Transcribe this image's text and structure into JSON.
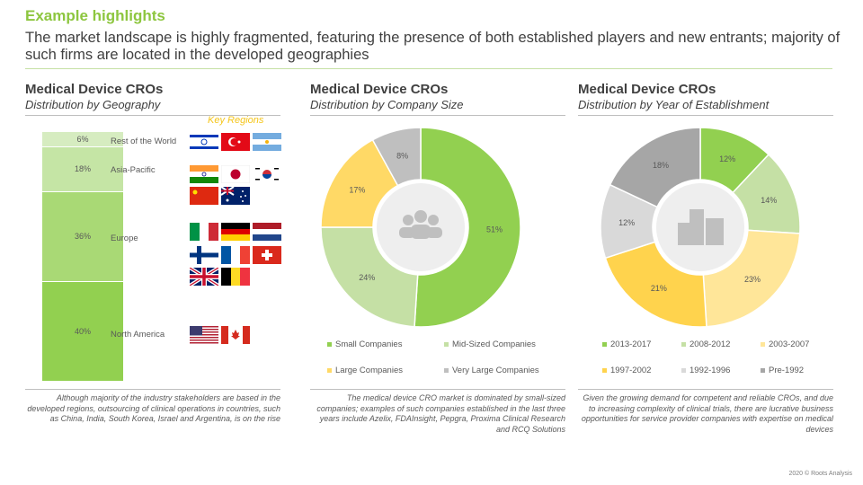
{
  "header": {
    "title": "Example highlights",
    "subtitle": "The market landscape is highly fragmented, featuring the presence of both established players and new entrants; majority of such firms are located in the developed geographies"
  },
  "panels": [
    {
      "heading": "Medical Device CROs",
      "subheading": "Distribution by Geography",
      "note": "Although majority of the industry stakeholders are based in the developed regions, outsourcing of clinical operations in countries, such as China, India, South Korea, Israel and Argentina, is on the rise",
      "key_regions_label": "Key Regions"
    },
    {
      "heading": "Medical Device CROs",
      "subheading": "Distribution by Company Size",
      "note": "The medical device CRO market is dominated by small-sized companies; examples of such companies established in the last three years include Azelix, FDAInsight, Pepgra, Proxima Clinical Research and RCQ Solutions",
      "center_icon": "people-icon"
    },
    {
      "heading": "Medical Device CROs",
      "subheading": "Distribution by Year of Establishment",
      "note": "Given the growing demand for competent and reliable CROs, and due to increasing complexity of clinical trials, there are lucrative business opportunities for service provider companies with expertise on medical devices",
      "center_icon": "buildings-icon"
    }
  ],
  "chart_data": [
    {
      "type": "bar",
      "stacked": true,
      "categories": [
        "North America",
        "Europe",
        "Asia-Pacific",
        "Rest of the World"
      ],
      "values": [
        40,
        36,
        18,
        6
      ],
      "labels": [
        "40%",
        "36%",
        "18%",
        "6%"
      ],
      "colors": [
        "#92d050",
        "#a9d975",
        "#c5e5a5",
        "#d6ecc0"
      ],
      "flags": {
        "Rest of the World": [
          "Israel",
          "Turkey",
          "Argentina"
        ],
        "Asia-Pacific": [
          "India",
          "Japan",
          "South Korea",
          "China",
          "Australia"
        ],
        "Europe": [
          "Italy",
          "Germany",
          "Netherlands",
          "Finland",
          "France",
          "Switzerland",
          "United Kingdom",
          "Belgium"
        ],
        "North America": [
          "United States",
          "Canada"
        ]
      }
    },
    {
      "type": "pie",
      "donut": true,
      "categories": [
        "Small Companies",
        "Mid-Sized Companies",
        "Large Companies",
        "Very Large Companies"
      ],
      "values": [
        51,
        24,
        17,
        8
      ],
      "labels": [
        "51%",
        "24%",
        "17%",
        "8%"
      ],
      "colors": [
        "#92d050",
        "#c5e0a5",
        "#ffd966",
        "#bfbfbf"
      ],
      "legend": "bottom"
    },
    {
      "type": "pie",
      "donut": true,
      "categories": [
        "2013-2017",
        "2008-2012",
        "2003-2007",
        "1997-2002",
        "1992-1996",
        "Pre-1992"
      ],
      "values": [
        12,
        14,
        23,
        21,
        12,
        18
      ],
      "labels": [
        "12%",
        "14%",
        "23%",
        "21%",
        "12%",
        "18%"
      ],
      "colors": [
        "#92d050",
        "#c5e0a5",
        "#ffe699",
        "#ffd34d",
        "#d9d9d9",
        "#a6a6a6"
      ],
      "legend": "bottom"
    }
  ],
  "footer": "2020 © Roots Analysis"
}
